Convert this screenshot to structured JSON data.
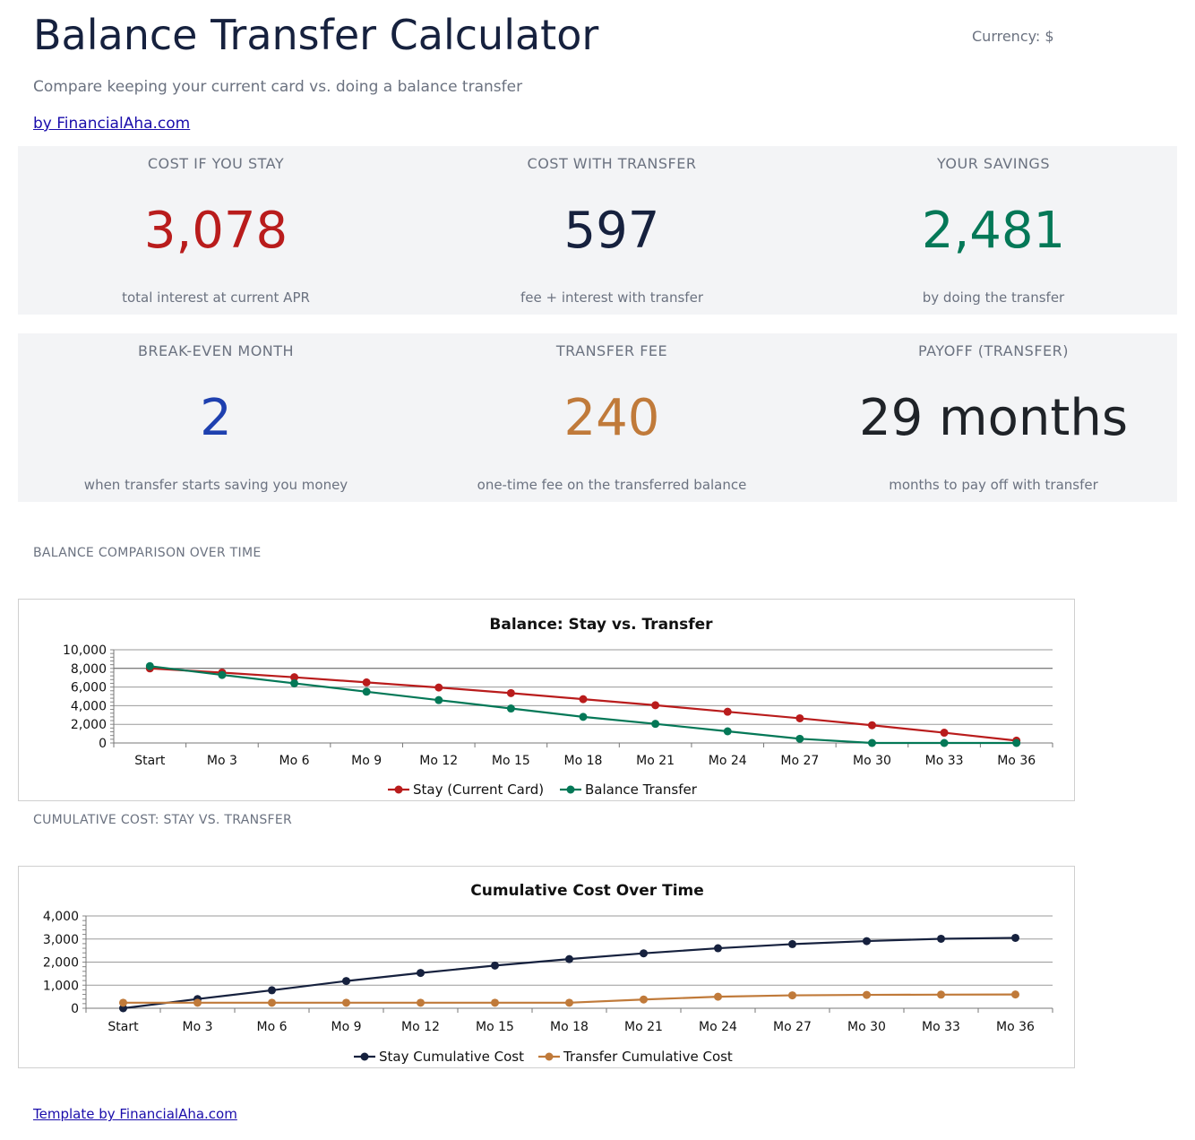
{
  "header": {
    "title": "Balance Transfer Calculator",
    "currency": "Currency: $",
    "subtitle": "Compare keeping your current card vs. doing a balance transfer",
    "byline": "by FinancialAha.com"
  },
  "kpis": {
    "row1": [
      {
        "label": "COST IF YOU STAY",
        "value": "3,078",
        "sub": "total interest at current APR",
        "color": "#b91c1c"
      },
      {
        "label": "COST WITH TRANSFER",
        "value": "597",
        "sub": "fee + interest with transfer",
        "color": "#16213e"
      },
      {
        "label": "YOUR SAVINGS",
        "value": "2,481",
        "sub": "by doing the transfer",
        "color": "#047857"
      }
    ],
    "row2": [
      {
        "label": "BREAK-EVEN MONTH",
        "value": "2",
        "sub": "when transfer starts saving you money",
        "color": "#1e40af"
      },
      {
        "label": "TRANSFER FEE",
        "value": "240",
        "sub": "one-time fee on the transferred balance",
        "color": "#c07a3a"
      },
      {
        "label": "PAYOFF (TRANSFER)",
        "value": "29 months",
        "sub": "months to pay off with transfer",
        "color": "#1f2328"
      }
    ]
  },
  "sections": {
    "balance_label": "BALANCE COMPARISON OVER TIME",
    "cumulative_label": "CUMULATIVE COST: STAY VS. TRANSFER"
  },
  "footer": {
    "link": "Template by FinancialAha.com"
  },
  "chart_data": [
    {
      "type": "line",
      "title": "Balance: Stay vs. Transfer",
      "categories": [
        "Start",
        "Mo 3",
        "Mo 6",
        "Mo 9",
        "Mo 12",
        "Mo 15",
        "Mo 18",
        "Mo 21",
        "Mo 24",
        "Mo 27",
        "Mo 30",
        "Mo 33",
        "Mo 36"
      ],
      "ylim": [
        0,
        10000
      ],
      "yticks": [
        0,
        2000,
        4000,
        6000,
        8000,
        10000
      ],
      "ytick_labels": [
        "0",
        "2,000",
        "4,000",
        "6,000",
        "8,000",
        "10,000"
      ],
      "legend": "bottom",
      "grid": true,
      "series": [
        {
          "name": "Stay (Current Card)",
          "color": "#b91c1c",
          "values": [
            8000,
            7550,
            7050,
            6500,
            5950,
            5350,
            4700,
            4050,
            3350,
            2650,
            1900,
            1100,
            250
          ]
        },
        {
          "name": "Balance Transfer",
          "color": "#047857",
          "values": [
            8240,
            7300,
            6400,
            5500,
            4600,
            3700,
            2800,
            2050,
            1250,
            450,
            0,
            0,
            0
          ]
        }
      ]
    },
    {
      "type": "line",
      "title": "Cumulative Cost Over Time",
      "categories": [
        "Start",
        "Mo 3",
        "Mo 6",
        "Mo 9",
        "Mo 12",
        "Mo 15",
        "Mo 18",
        "Mo 21",
        "Mo 24",
        "Mo 27",
        "Mo 30",
        "Mo 33",
        "Mo 36"
      ],
      "ylim": [
        0,
        4000
      ],
      "yticks": [
        0,
        1000,
        2000,
        3000,
        4000
      ],
      "ytick_labels": [
        "0",
        "1,000",
        "2,000",
        "3,000",
        "4,000"
      ],
      "legend": "bottom",
      "grid": true,
      "series": [
        {
          "name": "Stay Cumulative Cost",
          "color": "#16213e",
          "values": [
            0,
            400,
            780,
            1180,
            1530,
            1850,
            2130,
            2380,
            2600,
            2780,
            2910,
            3010,
            3050
          ]
        },
        {
          "name": "Transfer Cumulative Cost",
          "color": "#c07a3a",
          "values": [
            240,
            240,
            240,
            240,
            240,
            240,
            240,
            380,
            500,
            560,
            580,
            590,
            597
          ]
        }
      ]
    }
  ]
}
